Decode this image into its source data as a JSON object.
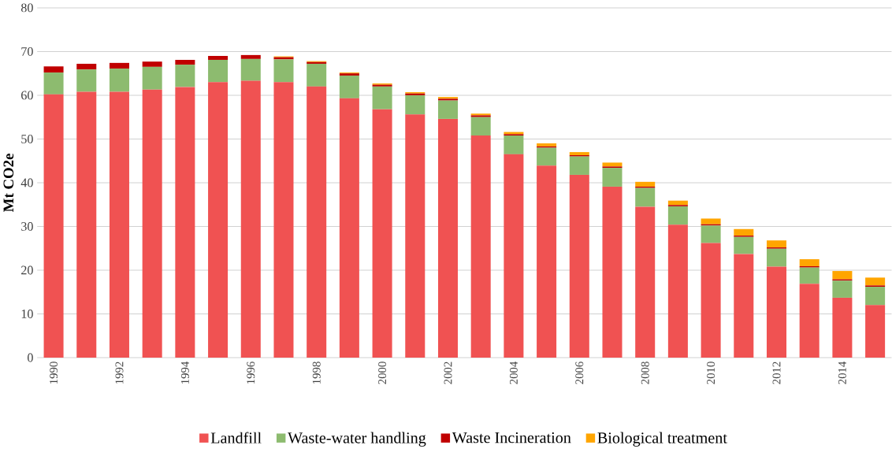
{
  "chart_data": {
    "type": "bar",
    "stacked": true,
    "ylabel": "Mt CO2e",
    "categories": [
      "1990",
      null,
      "1992",
      null,
      "1994",
      null,
      "1996",
      null,
      "1998",
      null,
      "2000",
      null,
      "2002",
      null,
      "2004",
      null,
      "2006",
      null,
      "2008",
      null,
      "2010",
      null,
      "2012",
      null,
      "2014",
      null
    ],
    "series": [
      {
        "name": "Landfill",
        "color": "#f05252",
        "values": [
          60.2,
          60.8,
          60.8,
          61.3,
          61.9,
          63.0,
          63.3,
          63.0,
          62.0,
          59.3,
          56.8,
          55.6,
          54.6,
          50.8,
          46.5,
          43.9,
          41.8,
          39.1,
          34.5,
          30.4,
          26.2,
          23.7,
          20.8,
          16.9,
          13.7,
          12.0
        ]
      },
      {
        "name": "Waste-water handling",
        "color": "#8dbb6f",
        "values": [
          5.0,
          5.1,
          5.3,
          5.2,
          5.1,
          5.1,
          5.0,
          5.2,
          5.2,
          5.2,
          5.2,
          4.4,
          4.2,
          4.2,
          4.3,
          4.1,
          4.2,
          4.3,
          4.3,
          4.2,
          4.0,
          3.9,
          4.1,
          3.7,
          3.9,
          4.2
        ]
      },
      {
        "name": "Waste Incineration",
        "color": "#c00000",
        "values": [
          1.4,
          1.3,
          1.3,
          1.2,
          1.1,
          0.9,
          0.9,
          0.5,
          0.4,
          0.5,
          0.4,
          0.4,
          0.4,
          0.4,
          0.3,
          0.3,
          0.3,
          0.3,
          0.3,
          0.3,
          0.3,
          0.3,
          0.3,
          0.3,
          0.3,
          0.3
        ]
      },
      {
        "name": "Biological treatment",
        "color": "#ffa500",
        "values": [
          0.0,
          0.0,
          0.0,
          0.0,
          0.0,
          0.0,
          0.0,
          0.2,
          0.2,
          0.2,
          0.3,
          0.3,
          0.4,
          0.4,
          0.5,
          0.7,
          0.7,
          0.9,
          1.1,
          1.0,
          1.3,
          1.5,
          1.6,
          1.6,
          1.9,
          1.8
        ]
      }
    ],
    "ylim": [
      0,
      80
    ],
    "yticks": [
      0,
      10,
      20,
      30,
      40,
      50,
      60,
      70,
      80
    ],
    "grid": "y",
    "legend": "bottom"
  }
}
